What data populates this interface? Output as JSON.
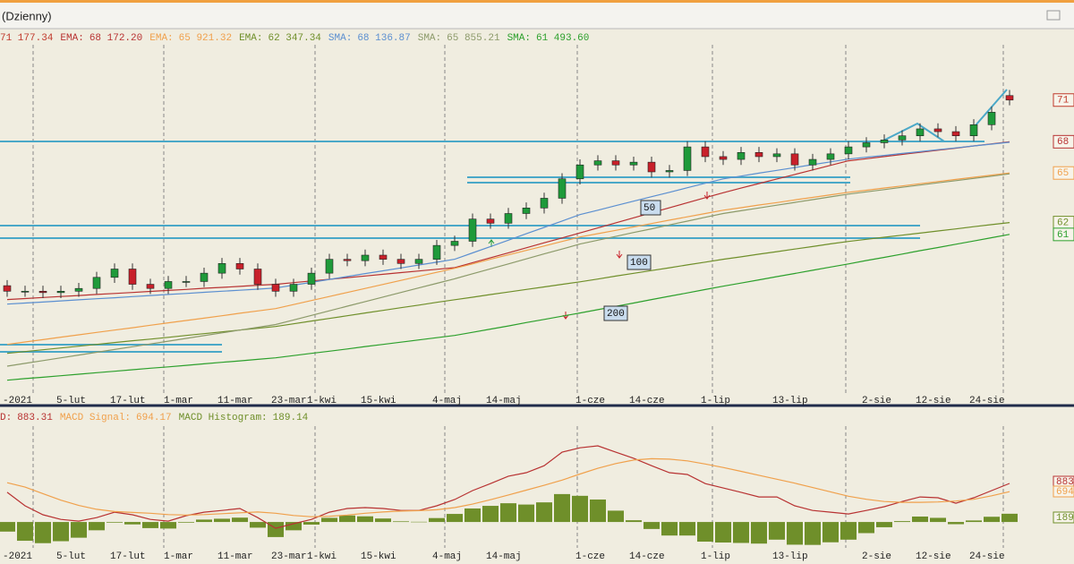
{
  "window": {
    "title": "(Dzienny)"
  },
  "chart_data": [
    {
      "type": "candlestick",
      "close_label": "71 177.34",
      "close_color": "#c0392b",
      "close_end_label": "71",
      "up_color": "#1f9a3a",
      "down_color": "#c8202a",
      "ylim": [
        50000,
        76000
      ],
      "categories": [
        "-2021",
        null,
        null,
        "5-lut",
        null,
        null,
        "17-lut",
        null,
        null,
        "1-mar",
        null,
        null,
        "11-mar",
        null,
        null,
        "23-mar",
        null,
        "1-kwi",
        null,
        null,
        "15-kwi",
        null,
        null,
        null,
        "4-maj",
        null,
        null,
        "14-maj",
        null,
        null,
        null,
        null,
        "1-cze",
        null,
        null,
        "14-cze",
        null,
        null,
        null,
        "1-lip",
        null,
        null,
        null,
        "13-lip",
        null,
        null,
        null,
        null,
        "2-sie",
        null,
        null,
        "12-sie",
        null,
        null,
        "24-sie",
        null,
        null
      ],
      "open": [
        57800,
        57400,
        57400,
        57300,
        57400,
        57600,
        58400,
        59000,
        57900,
        57600,
        58100,
        58100,
        58700,
        59400,
        59000,
        57900,
        57400,
        57900,
        58700,
        59700,
        59600,
        60000,
        59700,
        59400,
        59700,
        60700,
        61000,
        62600,
        62300,
        63000,
        63400,
        64100,
        65500,
        66500,
        66800,
        66500,
        66700,
        66000,
        66100,
        67800,
        67100,
        66900,
        67400,
        67100,
        67300,
        66500,
        66900,
        67300,
        67800,
        68100,
        68300,
        68600,
        69100,
        68900,
        68600,
        69400,
        71500
      ],
      "high": [
        58200,
        57800,
        57800,
        57800,
        58000,
        58800,
        59400,
        59400,
        58300,
        58500,
        58500,
        59100,
        59800,
        59800,
        59400,
        58300,
        58300,
        59100,
        60100,
        60100,
        60400,
        60400,
        60100,
        60100,
        61100,
        61400,
        63000,
        63000,
        63400,
        63800,
        64500,
        65900,
        66900,
        67200,
        67200,
        67100,
        67100,
        66500,
        68200,
        68200,
        67500,
        67800,
        67800,
        67700,
        67700,
        67300,
        67700,
        68200,
        68500,
        68700,
        69000,
        69500,
        69500,
        69300,
        69800,
        70700,
        71900
      ],
      "low": [
        57000,
        57000,
        56900,
        56900,
        57000,
        57200,
        58000,
        57500,
        57200,
        57200,
        57700,
        57700,
        58300,
        58600,
        57500,
        57000,
        57000,
        57500,
        58300,
        59200,
        59200,
        59300,
        59000,
        59000,
        59300,
        60300,
        60600,
        61900,
        61900,
        62600,
        63000,
        63700,
        65100,
        66100,
        66100,
        66100,
        65600,
        65600,
        65700,
        66700,
        66500,
        66500,
        66700,
        66700,
        66100,
        66100,
        66500,
        66900,
        67400,
        67700,
        67900,
        68200,
        68500,
        68200,
        68200,
        69000,
        70800
      ],
      "close": [
        57400,
        57400,
        57300,
        57400,
        57600,
        58400,
        59000,
        57900,
        57600,
        58100,
        58100,
        58700,
        59400,
        59000,
        57900,
        57400,
        57900,
        58700,
        59700,
        59600,
        60000,
        59700,
        59400,
        59700,
        60700,
        61000,
        62600,
        62300,
        63000,
        63400,
        64100,
        65500,
        66500,
        66800,
        66500,
        66700,
        66000,
        66100,
        67800,
        67100,
        66900,
        67400,
        67100,
        67300,
        66500,
        66900,
        67300,
        67800,
        68100,
        68300,
        68600,
        69100,
        68900,
        68600,
        69400,
        70300,
        71177.34
      ],
      "series": [
        {
          "name": "EMA:",
          "value_label": "68 172.20",
          "color": "#b83232",
          "end_label": "68",
          "values": [
            56800,
            56870,
            56950,
            57020,
            57090,
            57170,
            57240,
            57310,
            57390,
            57460,
            57530,
            57610,
            57680,
            57750,
            57830,
            57900,
            58020,
            58140,
            58260,
            58380,
            58500,
            58620,
            58740,
            58860,
            58980,
            59100,
            59460,
            59810,
            60170,
            60530,
            60890,
            61240,
            61600,
            61960,
            62330,
            62690,
            63050,
            63410,
            63780,
            64140,
            64500,
            64830,
            65160,
            65490,
            65810,
            66140,
            66470,
            66800,
            66950,
            67100,
            67260,
            67410,
            67560,
            67710,
            67870,
            68020,
            68172.2
          ]
        },
        {
          "name": "EMA:",
          "value_label": "65 921.32",
          "color": "#f0a04b",
          "end_label": "65",
          "values": [
            53570,
            53740,
            53910,
            54090,
            54260,
            54430,
            54600,
            54770,
            54950,
            55120,
            55290,
            55460,
            55630,
            55810,
            55980,
            56150,
            56440,
            56730,
            57020,
            57310,
            57600,
            57890,
            58180,
            58470,
            58760,
            59050,
            59370,
            59700,
            60020,
            60340,
            60660,
            60990,
            61310,
            61550,
            61790,
            62030,
            62280,
            62520,
            62760,
            63000,
            63240,
            63420,
            63610,
            63790,
            63980,
            64160,
            64350,
            64530,
            64680,
            64840,
            64990,
            65150,
            65300,
            65460,
            65610,
            65770,
            65921.32
          ]
        },
        {
          "name": "EMA:",
          "value_label": "62 347.34",
          "color": "#6f8f2a",
          "end_label": "62",
          "values": [
            52920,
            53050,
            53180,
            53310,
            53440,
            53570,
            53700,
            53830,
            53950,
            54080,
            54210,
            54340,
            54470,
            54600,
            54730,
            54860,
            55050,
            55250,
            55440,
            55630,
            55830,
            56020,
            56210,
            56400,
            56600,
            56790,
            56970,
            57160,
            57340,
            57530,
            57710,
            57900,
            58080,
            58280,
            58490,
            58690,
            58890,
            59090,
            59300,
            59500,
            59700,
            59880,
            60070,
            60250,
            60440,
            60620,
            60810,
            60990,
            61140,
            61290,
            61440,
            61590,
            61740,
            61890,
            62050,
            62200,
            62347.34
          ]
        },
        {
          "name": "SMA:",
          "value_label": "68 136.87",
          "color": "#5b8fd0",
          "values": [
            56470,
            56550,
            56620,
            56700,
            56780,
            56860,
            56930,
            57010,
            57090,
            57170,
            57240,
            57320,
            57400,
            57470,
            57550,
            57630,
            57840,
            58040,
            58250,
            58460,
            58670,
            58870,
            59080,
            59290,
            59490,
            59700,
            60160,
            60620,
            61080,
            61540,
            62000,
            62460,
            62920,
            63240,
            63570,
            63890,
            64210,
            64530,
            64860,
            65180,
            65500,
            65700,
            65910,
            66110,
            66310,
            66520,
            66720,
            66920,
            67060,
            67190,
            67330,
            67460,
            67600,
            67730,
            67870,
            68000,
            68136.87
          ]
        },
        {
          "name": "SMA:",
          "value_label": "65 855.21",
          "color": "#8c9a6a",
          "values": [
            52000,
            52200,
            52400,
            52600,
            52800,
            53000,
            53200,
            53400,
            53600,
            53800,
            54000,
            54200,
            54400,
            54600,
            54800,
            55000,
            55330,
            55660,
            55990,
            56320,
            56650,
            56980,
            57310,
            57640,
            57970,
            58300,
            58660,
            59010,
            59370,
            59730,
            60090,
            60440,
            60800,
            61080,
            61350,
            61630,
            61900,
            62180,
            62450,
            62730,
            63000,
            63200,
            63400,
            63600,
            63800,
            64000,
            64200,
            64400,
            64560,
            64720,
            64890,
            65050,
            65210,
            65370,
            65530,
            65690,
            65855.21
          ]
        },
        {
          "name": "SMA:",
          "value_label": "61 493.60",
          "color": "#2ca02c",
          "end_label": "61",
          "values": [
            50990,
            51100,
            51200,
            51310,
            51420,
            51530,
            51630,
            51740,
            51850,
            51950,
            52060,
            52170,
            52280,
            52380,
            52490,
            52600,
            52760,
            52920,
            53080,
            53240,
            53410,
            53570,
            53730,
            53890,
            54050,
            54210,
            54440,
            54670,
            54900,
            55140,
            55370,
            55600,
            55830,
            56070,
            56310,
            56550,
            56800,
            57040,
            57280,
            57520,
            57760,
            57990,
            58220,
            58450,
            58680,
            58910,
            59140,
            59370,
            59610,
            59840,
            60080,
            60320,
            60550,
            60790,
            61020,
            61260,
            61493.6
          ]
        }
      ],
      "annotations": [
        "50",
        "100",
        "200"
      ]
    },
    {
      "type": "macd",
      "ylim": [
        -860,
        2320
      ],
      "series": [
        {
          "name": "D:",
          "value_label": "883.31",
          "color": "#b83232",
          "end_label": "883",
          "values": [
            680,
            370,
            165,
            60,
            20,
            100,
            225,
            165,
            60,
            20,
            145,
            225,
            265,
            310,
            100,
            -145,
            -40,
            60,
            225,
            310,
            330,
            310,
            265,
            265,
            370,
            515,
            720,
            880,
            1050,
            1130,
            1290,
            1600,
            1700,
            1745,
            1600,
            1460,
            1290,
            1130,
            1090,
            880,
            780,
            680,
            575,
            575,
            370,
            265,
            225,
            185,
            265,
            350,
            470,
            575,
            555,
            430,
            555,
            720,
            883.31
          ]
        },
        {
          "name": "MACD Signal:",
          "value_label": "694.17",
          "color": "#f0a04b",
          "end_label": "694",
          "values": [
            900,
            800,
            650,
            500,
            380,
            290,
            240,
            220,
            200,
            170,
            160,
            170,
            190,
            210,
            230,
            200,
            150,
            120,
            130,
            160,
            200,
            230,
            250,
            260,
            280,
            330,
            410,
            510,
            620,
            730,
            840,
            960,
            1100,
            1230,
            1340,
            1420,
            1450,
            1440,
            1400,
            1330,
            1250,
            1160,
            1070,
            980,
            890,
            790,
            690,
            590,
            520,
            470,
            450,
            450,
            460,
            480,
            520,
            600,
            694.17
          ]
        },
        {
          "name": "MACD Histogram:",
          "value_label": "189.14",
          "color": "#6f8f2a",
          "end_label": "189",
          "style": "bar",
          "values": [
            -220,
            -430,
            -485,
            -440,
            -360,
            -190,
            -15,
            -55,
            -140,
            -150,
            -15,
            55,
            75,
            100,
            -130,
            -345,
            -190,
            -60,
            95,
            150,
            130,
            80,
            15,
            5,
            90,
            185,
            310,
            370,
            430,
            400,
            450,
            640,
            600,
            515,
            260,
            40,
            -160,
            -310,
            -310,
            -450,
            -470,
            -480,
            -495,
            -405,
            -520,
            -525,
            -465,
            -405,
            -255,
            -120,
            20,
            125,
            95,
            -50,
            35,
            120,
            189.14
          ]
        }
      ]
    }
  ]
}
